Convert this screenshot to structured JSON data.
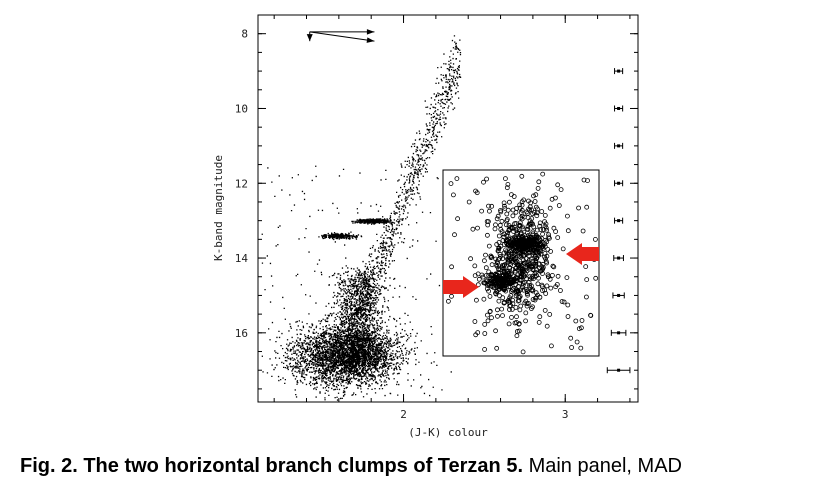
{
  "chart_data": {
    "type": "scatter",
    "xlabel": "(J-K) colour",
    "ylabel": "K-band magnitude",
    "xlim": [
      1.1,
      3.45
    ],
    "ylim": [
      17.85,
      7.5
    ],
    "x_ticks": [
      "2",
      "3"
    ],
    "x_tick_values": [
      2,
      3
    ],
    "y_ticks": [
      "8",
      "10",
      "12",
      "14",
      "16"
    ],
    "y_tick_values": [
      8,
      10,
      12,
      14,
      16
    ],
    "error_bars": [
      {
        "y": 9,
        "xerr": 0.025
      },
      {
        "y": 10,
        "xerr": 0.025
      },
      {
        "y": 11,
        "xerr": 0.025
      },
      {
        "y": 12,
        "xerr": 0.025
      },
      {
        "y": 13,
        "xerr": 0.025
      },
      {
        "y": 14,
        "xerr": 0.03
      },
      {
        "y": 15,
        "xerr": 0.035
      },
      {
        "y": 16,
        "xerr": 0.045
      },
      {
        "y": 17,
        "xerr": 0.07
      }
    ],
    "reddening_vectors": {
      "x0": 1.42,
      "y0": 7.95,
      "dx": 0.4,
      "dy_values": [
        0.0,
        0.25
      ],
      "dy_down": 0.25
    },
    "clumps": [
      {
        "x": 1.82,
        "y": 13.0,
        "label": "bright clump"
      },
      {
        "x": 1.6,
        "y": 13.4,
        "label": "faint clump"
      }
    ],
    "inset": {
      "xlim": [
        2.5,
        3.1
      ],
      "ylim": [
        15.8,
        12.3
      ],
      "arrows": [
        "upper-right",
        "lower-left"
      ]
    }
  },
  "caption": {
    "bold": "Fig. 2. The two horizontal branch clumps of Terzan 5.",
    "normal": "   Main panel, MAD"
  },
  "colors": {
    "points": "#000000",
    "arrows": "#e8261c",
    "frame": "#000000"
  }
}
